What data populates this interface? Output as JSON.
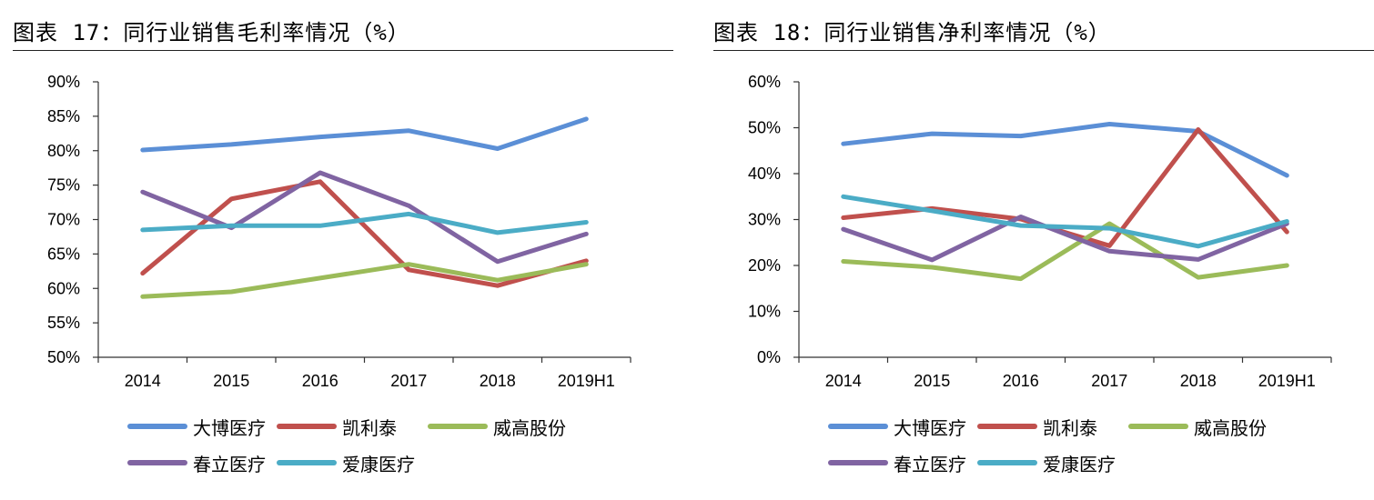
{
  "chart_data": [
    {
      "type": "line",
      "title": "图表 17：同行业销售毛利率情况（%）",
      "categories": [
        "2014",
        "2015",
        "2016",
        "2017",
        "2018",
        "2019H1"
      ],
      "ylim": [
        50,
        90
      ],
      "yticks": [
        "50%",
        "55%",
        "60%",
        "65%",
        "70%",
        "75%",
        "80%",
        "85%",
        "90%"
      ],
      "grid": false,
      "legend_position": "bottom",
      "series": [
        {
          "name": "大博医疗",
          "color": "#5B8FD6",
          "values": [
            80.1,
            80.9,
            82.0,
            82.9,
            80.3,
            84.6
          ]
        },
        {
          "name": "凯利泰",
          "color": "#C0504D",
          "values": [
            62.2,
            73.0,
            75.5,
            62.7,
            60.4,
            64.0
          ]
        },
        {
          "name": "威高股份",
          "color": "#9BBB59",
          "values": [
            58.8,
            59.5,
            61.5,
            63.5,
            61.2,
            63.5
          ]
        },
        {
          "name": "春立医疗",
          "color": "#8064A2",
          "values": [
            74.0,
            68.8,
            76.8,
            72.0,
            63.9,
            67.9
          ]
        },
        {
          "name": "爱康医疗",
          "color": "#4BACC6",
          "values": [
            68.5,
            69.1,
            69.1,
            70.8,
            68.1,
            69.6
          ]
        }
      ]
    },
    {
      "type": "line",
      "title": "图表 18：同行业销售净利率情况（%）",
      "categories": [
        "2014",
        "2015",
        "2016",
        "2017",
        "2018",
        "2019H1"
      ],
      "ylim": [
        0,
        60
      ],
      "yticks": [
        "0%",
        "10%",
        "20%",
        "30%",
        "40%",
        "50%",
        "60%"
      ],
      "grid": false,
      "legend_position": "bottom",
      "series": [
        {
          "name": "大博医疗",
          "color": "#5B8FD6",
          "values": [
            46.5,
            48.7,
            48.2,
            50.8,
            49.2,
            39.6
          ]
        },
        {
          "name": "凯利泰",
          "color": "#C0504D",
          "values": [
            30.4,
            32.4,
            30.1,
            24.3,
            49.6,
            27.3
          ]
        },
        {
          "name": "威高股份",
          "color": "#9BBB59",
          "values": [
            20.9,
            19.6,
            17.1,
            29.1,
            17.4,
            20.0
          ]
        },
        {
          "name": "春立医疗",
          "color": "#8064A2",
          "values": [
            27.9,
            21.2,
            30.6,
            23.1,
            21.3,
            29.1
          ]
        },
        {
          "name": "爱康医疗",
          "color": "#4BACC6",
          "values": [
            35.0,
            31.9,
            28.7,
            28.1,
            24.2,
            29.6
          ]
        }
      ]
    }
  ]
}
